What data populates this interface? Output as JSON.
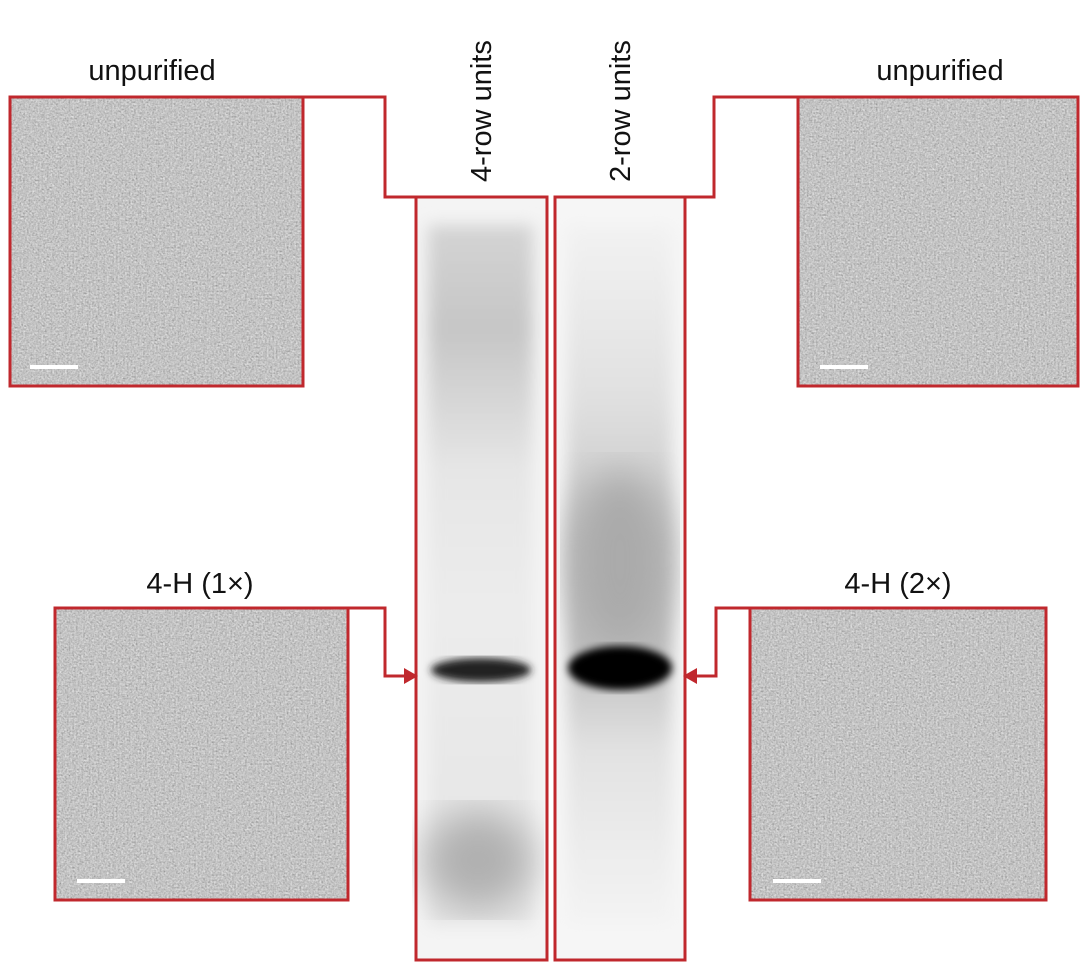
{
  "panels": [
    {
      "label": "unpurified"
    },
    {
      "label": "unpurified"
    },
    {
      "label": "4-H (1×)"
    },
    {
      "label": "4-H (2×)"
    }
  ],
  "lanes": [
    {
      "label": "4-row units"
    },
    {
      "label": "2-row units"
    }
  ]
}
